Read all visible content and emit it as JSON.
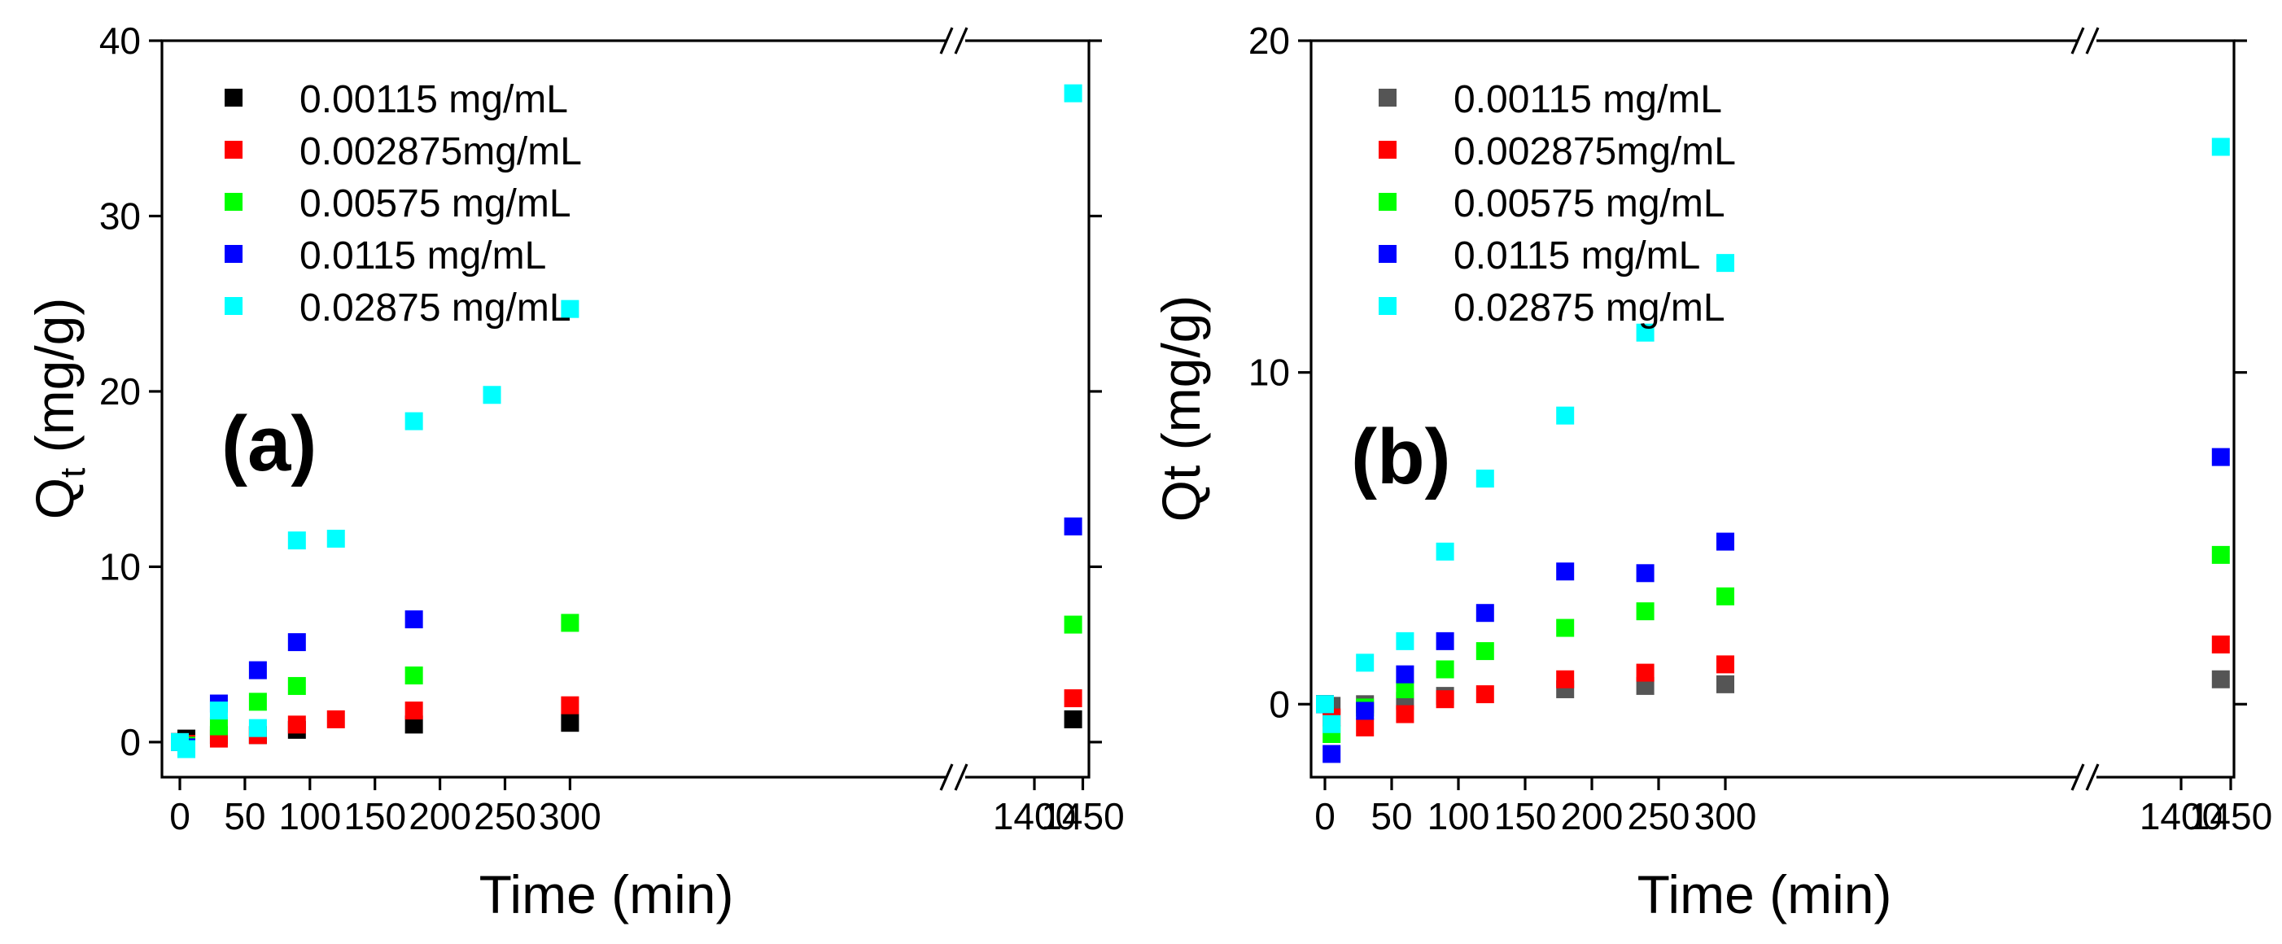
{
  "chart_data": [
    {
      "type": "scatter",
      "panel_label": "(a)",
      "xlabel": "Time (min)",
      "ylabel_main": "Q",
      "ylabel_sub": "t",
      "ylabel_rest": " (mg/g)",
      "ylim": [
        -2,
        40
      ],
      "yticks": [
        0,
        10,
        20,
        30,
        40
      ],
      "xticks": [
        0,
        50,
        100,
        150,
        200,
        250,
        300,
        1400,
        1450
      ],
      "x_break": [
        300,
        1400
      ],
      "legend_position": "top-left",
      "series": [
        {
          "name": "0.00115 mg/mL",
          "color": "#000000",
          "points": [
            [
              0,
              0.0
            ],
            [
              5,
              0.2
            ],
            [
              30,
              0.4
            ],
            [
              60,
              0.4
            ],
            [
              90,
              0.7
            ],
            [
              180,
              1.0
            ],
            [
              300,
              1.1
            ],
            [
              1440,
              1.3
            ]
          ]
        },
        {
          "name": "0.002875mg/mL",
          "color": "#ff0000",
          "points": [
            [
              0,
              0.0
            ],
            [
              5,
              -0.1
            ],
            [
              30,
              0.2
            ],
            [
              60,
              0.4
            ],
            [
              90,
              1.0
            ],
            [
              120,
              1.3
            ],
            [
              180,
              1.8
            ],
            [
              300,
              2.1
            ],
            [
              1440,
              2.5
            ]
          ]
        },
        {
          "name": "0.00575 mg/mL",
          "color": "#00ff00",
          "points": [
            [
              0,
              0.0
            ],
            [
              5,
              -0.2
            ],
            [
              30,
              0.9
            ],
            [
              60,
              2.3
            ],
            [
              90,
              3.2
            ],
            [
              180,
              3.8
            ],
            [
              300,
              6.8
            ],
            [
              1440,
              6.7
            ]
          ]
        },
        {
          "name": "0.0115 mg/mL",
          "color": "#0000ff",
          "points": [
            [
              0,
              0.0
            ],
            [
              5,
              -0.3
            ],
            [
              30,
              2.2
            ],
            [
              60,
              4.1
            ],
            [
              90,
              5.7
            ],
            [
              180,
              7.0
            ],
            [
              1440,
              12.3
            ]
          ]
        },
        {
          "name": "0.02875 mg/mL",
          "color": "#00ffff",
          "points": [
            [
              0,
              0.0
            ],
            [
              5,
              -0.4
            ],
            [
              30,
              1.8
            ],
            [
              60,
              0.8
            ],
            [
              90,
              11.5
            ],
            [
              120,
              11.6
            ],
            [
              180,
              18.3
            ],
            [
              240,
              19.8
            ],
            [
              300,
              24.7
            ],
            [
              1440,
              37.0
            ]
          ]
        }
      ]
    },
    {
      "type": "scatter",
      "panel_label": "(b)",
      "xlabel": "Time (min)",
      "ylabel_main": "Qt",
      "ylabel_sub": "",
      "ylabel_rest": " (mg/g)",
      "ylim": [
        -2.2,
        20
      ],
      "yticks": [
        0,
        10,
        20
      ],
      "xticks": [
        0,
        50,
        100,
        150,
        200,
        250,
        300,
        1400,
        1450
      ],
      "x_break": [
        300,
        1400
      ],
      "legend_position": "top-left",
      "series": [
        {
          "name": "0.00115 mg/mL",
          "color": "#555555",
          "points": [
            [
              0,
              0.0
            ],
            [
              5,
              -0.05
            ],
            [
              30,
              0.0
            ],
            [
              60,
              0.1
            ],
            [
              90,
              0.25
            ],
            [
              180,
              0.45
            ],
            [
              240,
              0.55
            ],
            [
              300,
              0.6
            ],
            [
              1440,
              0.75
            ]
          ]
        },
        {
          "name": "0.002875mg/mL",
          "color": "#ff0000",
          "points": [
            [
              0,
              0.0
            ],
            [
              5,
              -0.4
            ],
            [
              30,
              -0.7
            ],
            [
              60,
              -0.3
            ],
            [
              90,
              0.15
            ],
            [
              120,
              0.3
            ],
            [
              180,
              0.75
            ],
            [
              240,
              0.95
            ],
            [
              300,
              1.2
            ],
            [
              1440,
              1.8
            ]
          ]
        },
        {
          "name": "0.00575 mg/mL",
          "color": "#00ff00",
          "points": [
            [
              0,
              0.0
            ],
            [
              5,
              -0.9
            ],
            [
              30,
              -0.1
            ],
            [
              60,
              0.45
            ],
            [
              90,
              1.05
            ],
            [
              120,
              1.6
            ],
            [
              180,
              2.3
            ],
            [
              240,
              2.8
            ],
            [
              300,
              3.25
            ],
            [
              1440,
              4.5
            ]
          ]
        },
        {
          "name": "0.0115 mg/mL",
          "color": "#0000ff",
          "points": [
            [
              0,
              0.0
            ],
            [
              5,
              -1.5
            ],
            [
              30,
              -0.2
            ],
            [
              60,
              0.9
            ],
            [
              90,
              1.9
            ],
            [
              120,
              2.75
            ],
            [
              180,
              4.0
            ],
            [
              240,
              3.95
            ],
            [
              300,
              4.9
            ],
            [
              1440,
              7.45
            ]
          ]
        },
        {
          "name": "0.02875 mg/mL",
          "color": "#00ffff",
          "points": [
            [
              0,
              0.0
            ],
            [
              5,
              -0.6
            ],
            [
              30,
              1.25
            ],
            [
              60,
              1.9
            ],
            [
              90,
              4.6
            ],
            [
              120,
              6.8
            ],
            [
              180,
              8.7
            ],
            [
              240,
              11.2
            ],
            [
              300,
              13.3
            ],
            [
              1440,
              16.8
            ]
          ]
        }
      ]
    }
  ]
}
